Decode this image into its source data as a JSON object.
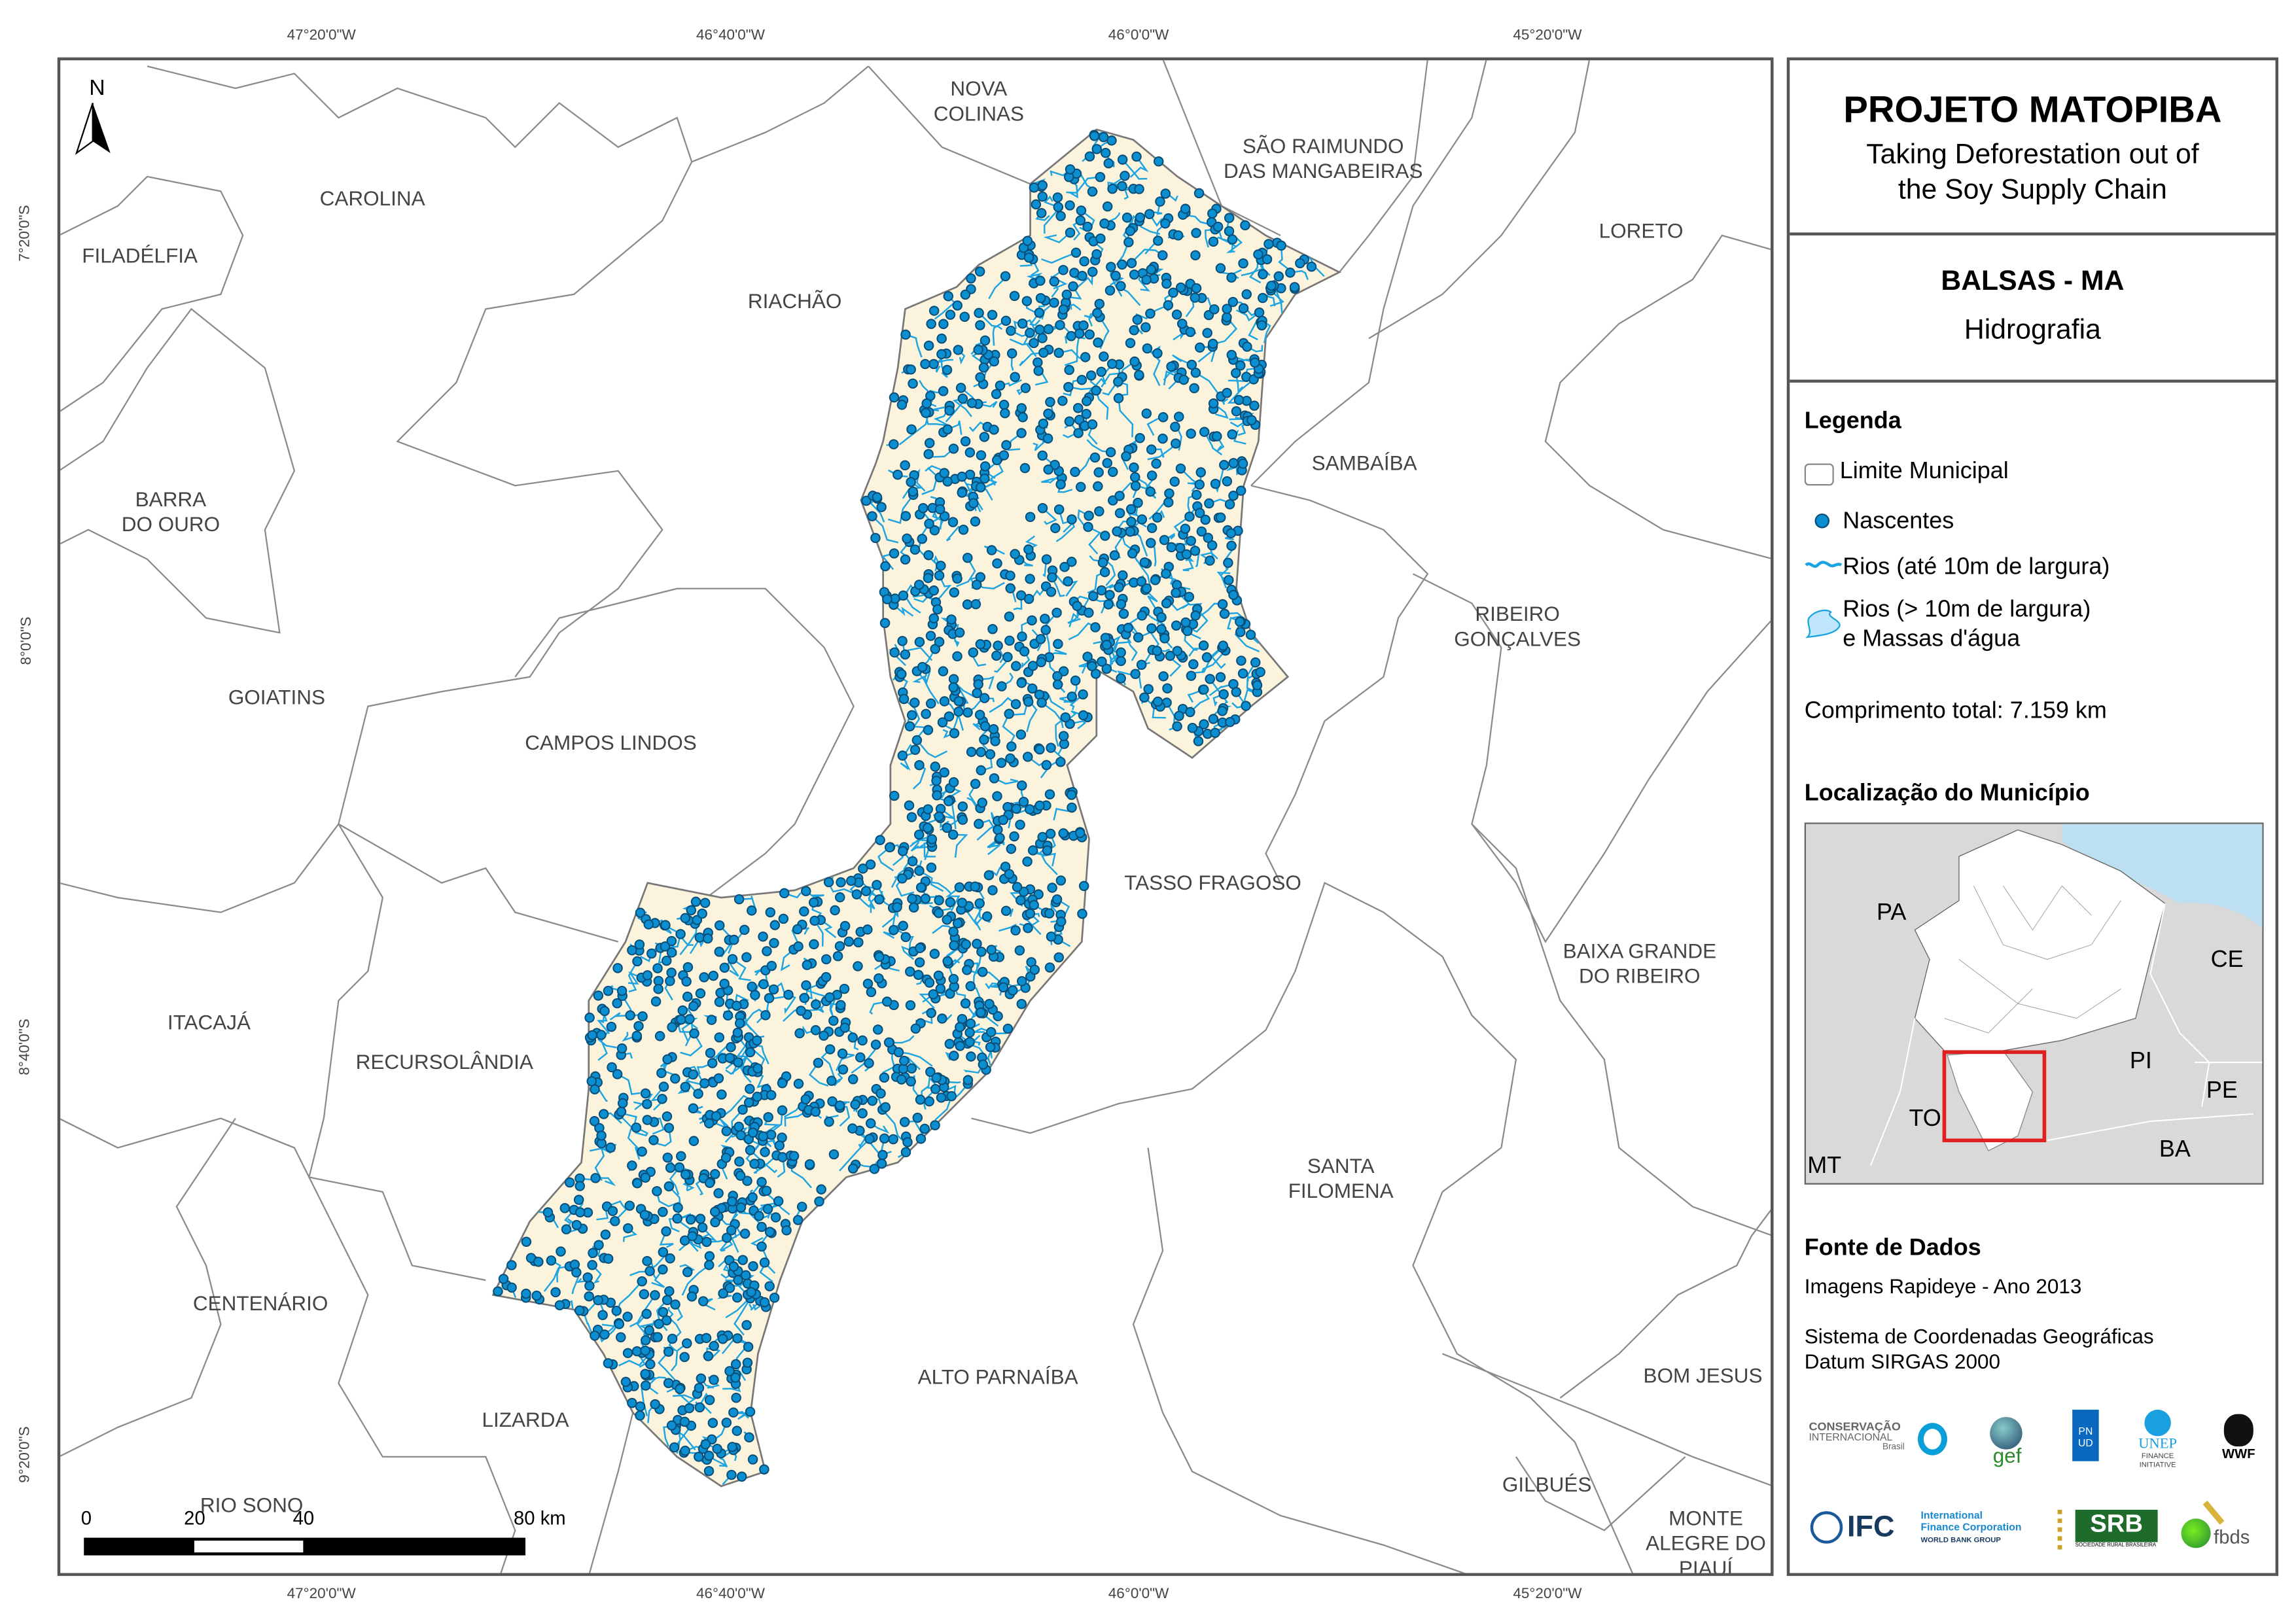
{
  "title": "PROJETO MATOPIBA",
  "subtitle_lines": [
    "Taking Deforestation out of",
    "the Soy Supply Chain"
  ],
  "municipality": "BALSAS - MA",
  "theme": "Hidrografia",
  "legend": {
    "heading": "Legenda",
    "items": [
      {
        "label": "Limite Municipal",
        "icon": "boundary-box-icon",
        "color": "#888888"
      },
      {
        "label": "Nascentes",
        "icon": "spring-dot-icon",
        "color": "#0b8fd0"
      },
      {
        "label": "Rios (até 10m de largura)",
        "icon": "river-line-icon",
        "color": "#19a3e0"
      },
      {
        "label_lines": [
          "Rios (> 10m de largura)",
          "e Massas d'água"
        ],
        "icon": "water-body-icon",
        "color": "#bfe6fa"
      }
    ],
    "total_length": "Comprimento total: 7.159 km"
  },
  "location": {
    "heading": "Localização do Município",
    "states": [
      "PA",
      "CE",
      "PI",
      "PE",
      "TO",
      "BA",
      "MT"
    ],
    "highlight_color": "#e02020",
    "ocean_color": "#bcdff2"
  },
  "sources": {
    "heading": "Fonte de Dados",
    "lines": [
      "Imagens Rapideye - Ano 2013",
      "Sistema de Coordenadas Geográficas",
      "Datum SIRGAS 2000"
    ]
  },
  "logos": {
    "ci": [
      "CONSERVAÇÃO",
      "INTERNACIONAL",
      "Brasil"
    ],
    "gef": "gef",
    "pnud": [
      "P",
      "N",
      "U",
      "D"
    ],
    "unep": [
      "UNEP",
      "FINANCE",
      "INITIATIVE"
    ],
    "wwf": "WWF",
    "ifc": [
      "IFC",
      "International",
      "Finance Corporation",
      "WORLD BANK GROUP"
    ],
    "srb": [
      "SRB",
      "SOCIEDADE RURAL BRASILEIRA"
    ],
    "fbds": "fbds"
  },
  "map": {
    "north_label": "N",
    "lon_ticks": [
      "47°20'0\"W",
      "46°40'0\"W",
      "46°0'0\"W",
      "45°20'0\"W"
    ],
    "lat_ticks": [
      "7°20'0\"S",
      "8°0'0\"S",
      "8°40'0\"S",
      "9°20'0\"S"
    ],
    "scale_labels": [
      "0",
      "20",
      "40",
      "80 km"
    ],
    "study_area_fill": "#fbf3dc",
    "municipalities": [
      "NOVA\nCOLINAS",
      "SÃO RAIMUNDO\nDAS MANGABEIRAS",
      "CAROLINA",
      "FILADÉLFIA",
      "LORETO",
      "RIACHÃO",
      "SAMBAÍBA",
      "BARRA\nDO OURO",
      "RIBEIRO\nGONÇALVES",
      "GOIATINS",
      "CAMPOS LINDOS",
      "TASSO FRAGOSO",
      "BAIXA GRANDE\nDO RIBEIRO",
      "ITACAJÁ",
      "RECURSOLÂNDIA",
      "SANTA\nFILOMENA",
      "CENTENÁRIO",
      "ALTO PARNAÍBA",
      "BOM JESUS",
      "LIZARDA",
      "GILBUÉS",
      "RIO SONO",
      "MONTE\nALEGRE DO\nPIAUÍ"
    ]
  }
}
